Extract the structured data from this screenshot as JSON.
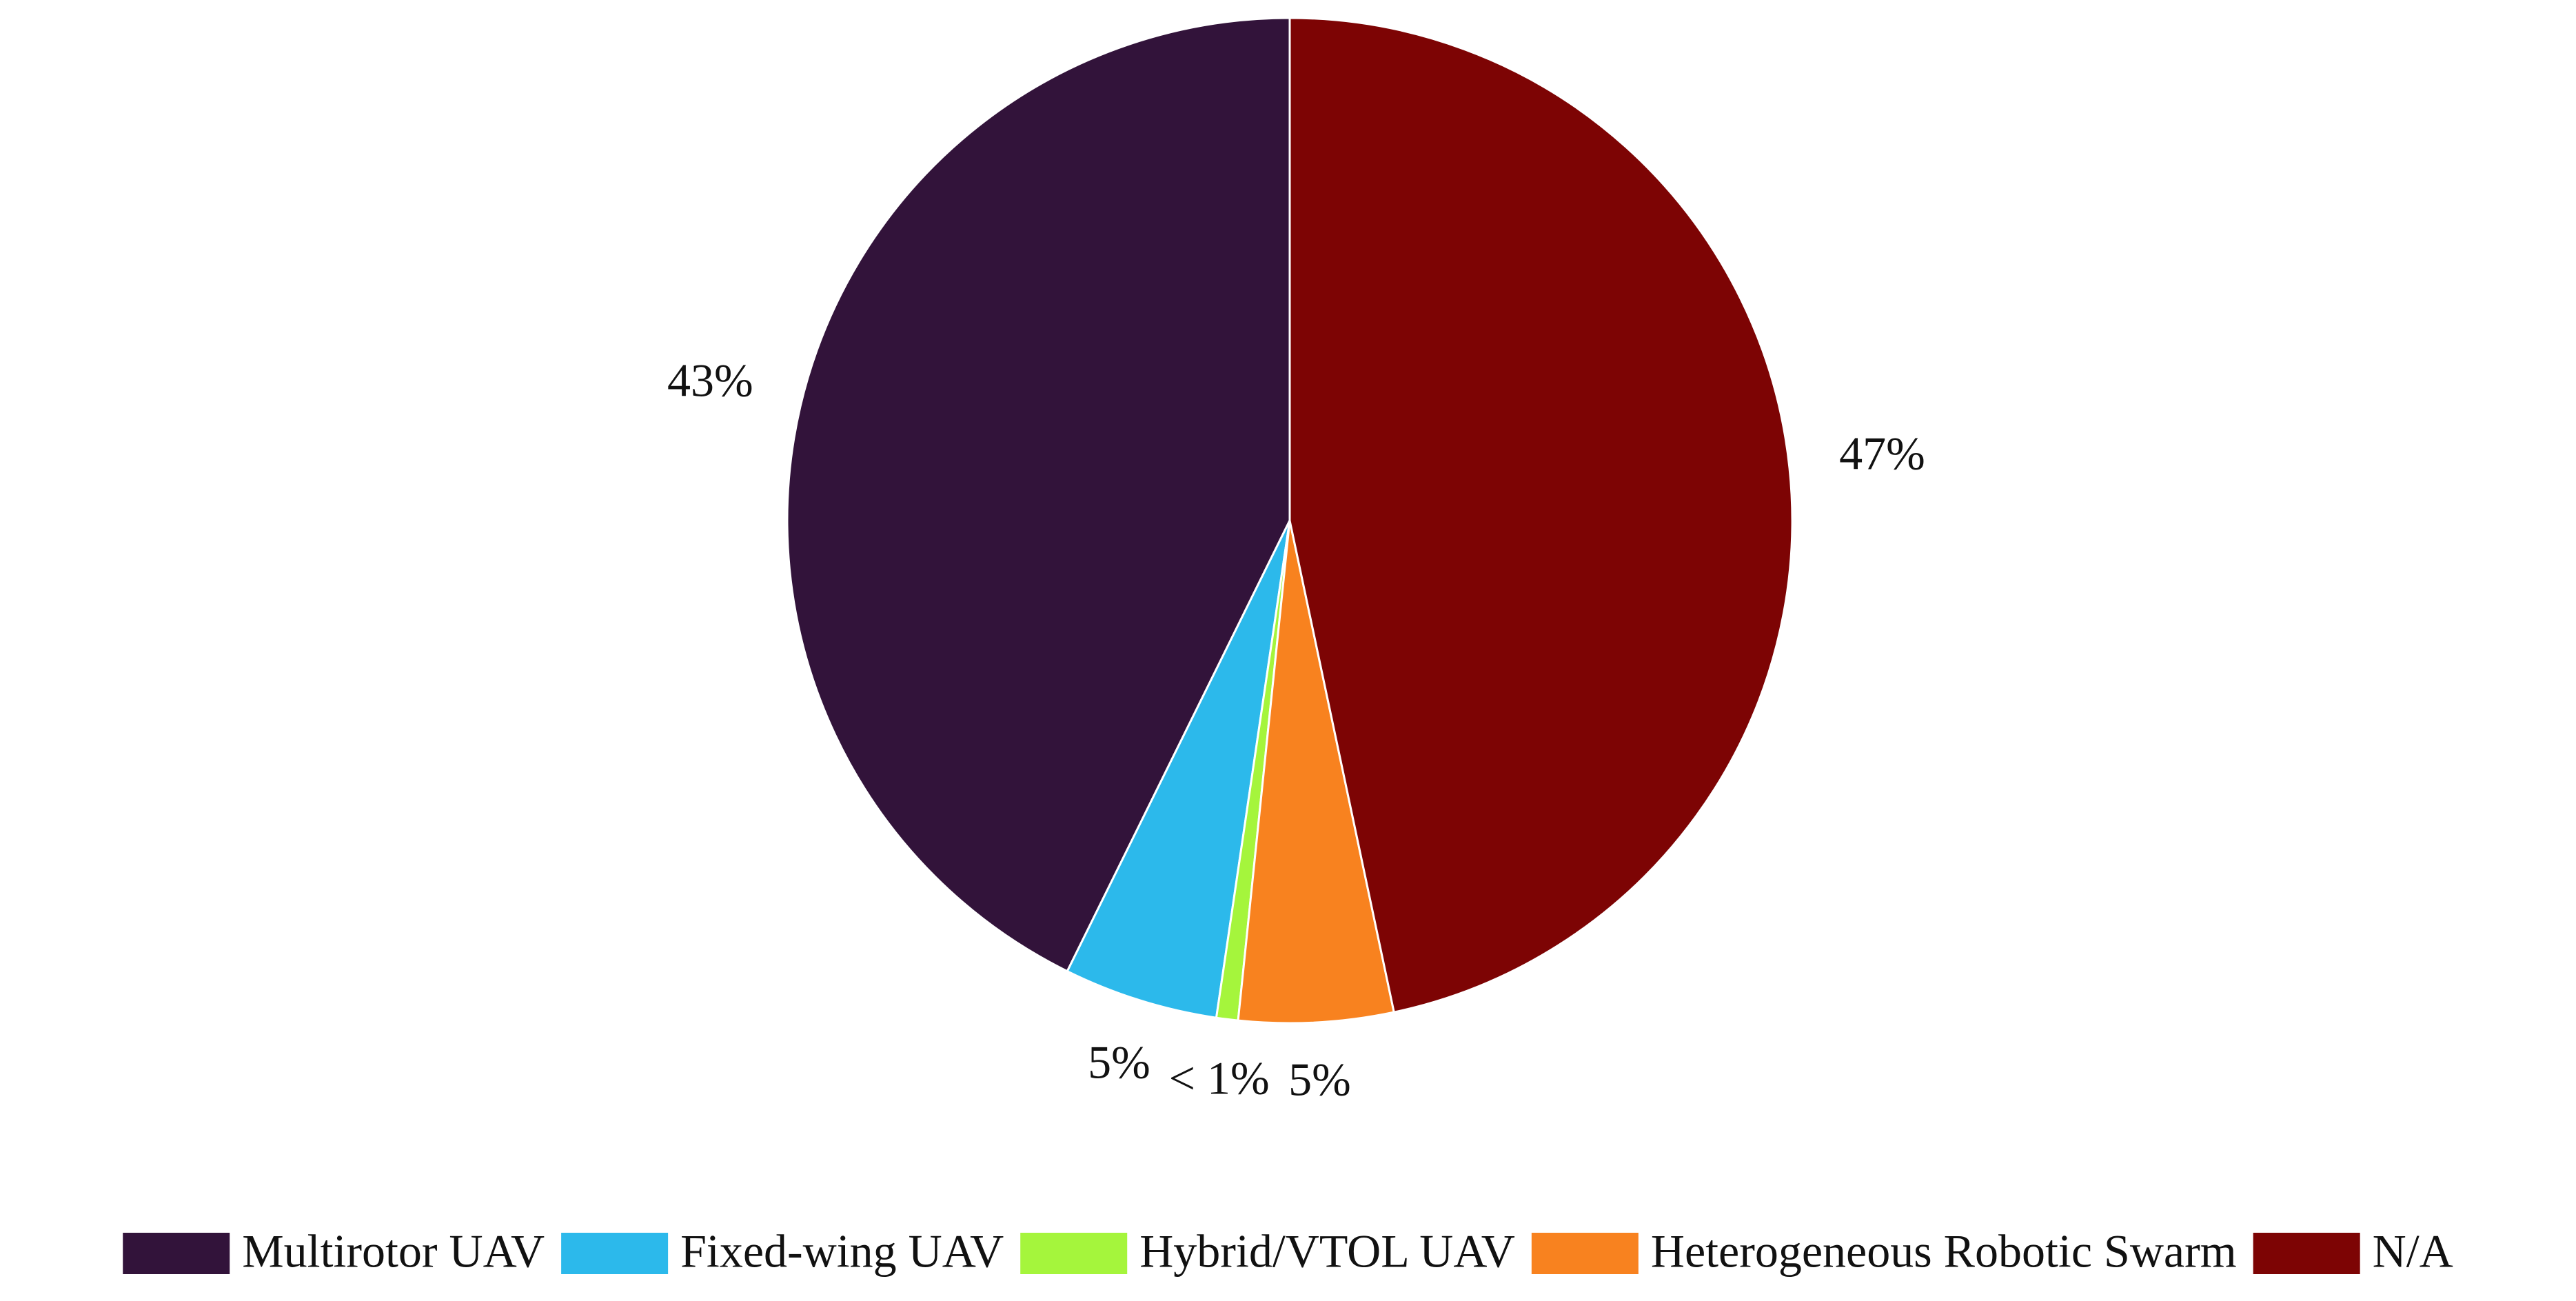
{
  "chart_data": {
    "type": "pie",
    "categories": [
      "Multirotor UAV",
      "Fixed-wing UAV",
      "Hybrid/VTOL UAV",
      "Heterogeneous Robotic Swarm",
      "N/A"
    ],
    "values": [
      43,
      5,
      0.7,
      5,
      47
    ],
    "value_labels": [
      "43%",
      "5%",
      "< 1%",
      "5%",
      "47%"
    ],
    "colors": [
      "#32133a",
      "#2cb9eb",
      "#a5f53c",
      "#f8821f",
      "#7d0404"
    ],
    "legend": "bottom"
  }
}
